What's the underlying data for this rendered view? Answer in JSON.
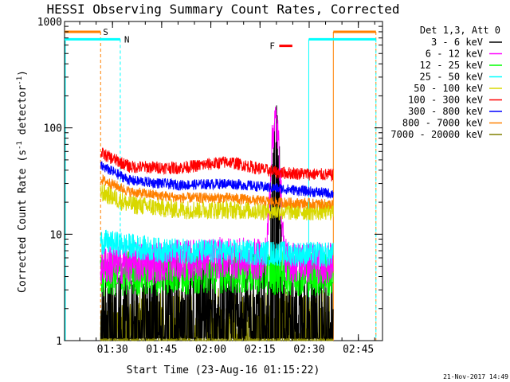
{
  "chart_data": {
    "type": "line",
    "title": "HESSI Observing Summary Count Rates, Corrected",
    "xlabel": "Start Time (23-Aug-16 01:15:22)",
    "ylabel_main": "Corrected Count Rate (s",
    "ylabel_sup1": "-1",
    "ylabel_mid": " detector",
    "ylabel_sup2": "-1",
    "ylabel_end": ")",
    "yscale": "log",
    "ylim": [
      1,
      1000
    ],
    "xlim_minutes": [
      0,
      97
    ],
    "x_unit": "minutes after 01:15:22",
    "x_ticks": [
      {
        "m": 14.63,
        "label": "01:30"
      },
      {
        "m": 29.63,
        "label": "01:45"
      },
      {
        "m": 44.63,
        "label": "02:00"
      },
      {
        "m": 59.63,
        "label": "02:15"
      },
      {
        "m": 74.63,
        "label": "02:30"
      },
      {
        "m": 89.63,
        "label": "02:45"
      }
    ],
    "y_ticks": [
      {
        "v": 1,
        "label": "1"
      },
      {
        "v": 10,
        "label": "10"
      },
      {
        "v": 100,
        "label": "100"
      },
      {
        "v": 1000,
        "label": "1000"
      }
    ],
    "legend_header": "Det 1,3, Att 0",
    "series": [
      {
        "name": "3 - 6 keV",
        "color": "#000000",
        "base": [
          [
            11,
            1.6
          ],
          [
            30,
            2.2
          ],
          [
            50,
            2.8
          ],
          [
            65,
            2.2
          ],
          [
            82,
            1.8
          ]
        ],
        "noise": 0.45,
        "flare": {
          "center": 64.5,
          "peak": 70,
          "width": 1.1
        },
        "floor": 1.05
      },
      {
        "name": "6 - 12 keV",
        "color": "#ff00ff",
        "base": [
          [
            11,
            5.2
          ],
          [
            30,
            5.5
          ],
          [
            50,
            6.0
          ],
          [
            65,
            5.6
          ],
          [
            82,
            5.3
          ]
        ],
        "noise": 0.2,
        "flare": {
          "center": 64.3,
          "peak": 110,
          "width": 1.3
        },
        "floor": 1.05
      },
      {
        "name": "12 - 25 keV",
        "color": "#00ff00",
        "base": [
          [
            11,
            4.2
          ],
          [
            30,
            4.4
          ],
          [
            50,
            4.6
          ],
          [
            65,
            4.4
          ],
          [
            82,
            4.2
          ]
        ],
        "noise": 0.22,
        "floor": 1.05
      },
      {
        "name": "25 - 50 keV",
        "color": "#00ffff",
        "base": [
          [
            11,
            8.5
          ],
          [
            30,
            7.0
          ],
          [
            50,
            6.8
          ],
          [
            65,
            6.6
          ],
          [
            82,
            6.4
          ]
        ],
        "noise": 0.12,
        "floor": 1.05
      },
      {
        "name": "50 - 100 keV",
        "color": "#d8d800",
        "base": [
          [
            11,
            25
          ],
          [
            20,
            19
          ],
          [
            35,
            17
          ],
          [
            50,
            17
          ],
          [
            65,
            16.5
          ],
          [
            82,
            16.5
          ]
        ],
        "noise": 0.09,
        "floor": 1.05
      },
      {
        "name": "100 - 300 keV",
        "color": "#ff0000",
        "base": [
          [
            11,
            58
          ],
          [
            20,
            43
          ],
          [
            35,
            42
          ],
          [
            50,
            48
          ],
          [
            65,
            38
          ],
          [
            82,
            36
          ]
        ],
        "noise": 0.06,
        "floor": 1.05
      },
      {
        "name": "300 - 800 keV",
        "color": "#0000ff",
        "base": [
          [
            11,
            44
          ],
          [
            20,
            32
          ],
          [
            35,
            29
          ],
          [
            50,
            30
          ],
          [
            65,
            27
          ],
          [
            82,
            24
          ]
        ],
        "noise": 0.05,
        "floor": 1.05
      },
      {
        "name": "800 - 7000 keV",
        "color": "#ff8000",
        "base": [
          [
            11,
            33
          ],
          [
            20,
            25
          ],
          [
            35,
            22
          ],
          [
            50,
            22
          ],
          [
            65,
            20
          ],
          [
            82,
            19
          ]
        ],
        "noise": 0.05,
        "floor": 1.05
      },
      {
        "name": "7000 - 20000 keV",
        "color": "#808000",
        "base": [
          [
            11,
            1.4
          ],
          [
            50,
            1.4
          ],
          [
            82,
            1.4
          ]
        ],
        "noise": 0.35,
        "floor": 1.0
      }
    ],
    "data_range_minutes": [
      11,
      82
    ],
    "annotations": {
      "S": {
        "label": "S",
        "color": "#ff8000",
        "level": 800,
        "segments": [
          [
            0,
            11
          ],
          [
            82,
            95
          ]
        ],
        "marks": [
          11,
          82,
          95
        ]
      },
      "N": {
        "label": "N",
        "color": "#00ffff",
        "level": 680,
        "segments": [
          [
            0,
            17
          ],
          [
            74.5,
            95
          ]
        ],
        "marks": [
          0,
          17,
          74.5,
          95
        ]
      },
      "F": {
        "label": "F",
        "color": "#ff0000",
        "level": 590,
        "segment": [
          65.5,
          69.5
        ]
      }
    },
    "timestamp": "21-Nov-2017 14:49"
  }
}
